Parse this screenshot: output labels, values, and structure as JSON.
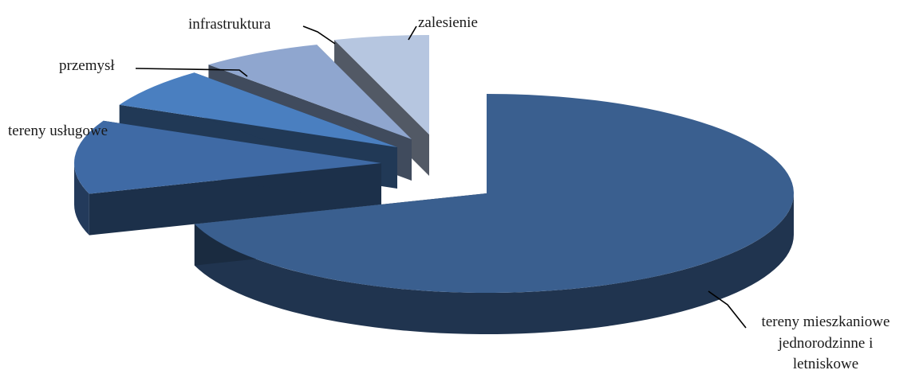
{
  "chart_data": {
    "type": "pie",
    "style": "3d-exploded",
    "title": "",
    "slices": [
      {
        "label": "tereny mieszkaniowe jednorodzinne i letniskowe",
        "value": 70,
        "color": "#3a5f8f"
      },
      {
        "label": "tereny usługowe",
        "value": 12,
        "color": "#3f6aa5"
      },
      {
        "label": "przemysł",
        "value": 6.5,
        "color": "#4a7fc0"
      },
      {
        "label": "infrastruktura",
        "value": 6.5,
        "color": "#8fa6cf"
      },
      {
        "label": "zalesienie",
        "value": 5,
        "color": "#b6c6e0"
      }
    ],
    "labels_wrapped": {
      "main": [
        "tereny mieszkaniowe",
        "jednorodzinne i",
        "letniskowe"
      ]
    }
  }
}
